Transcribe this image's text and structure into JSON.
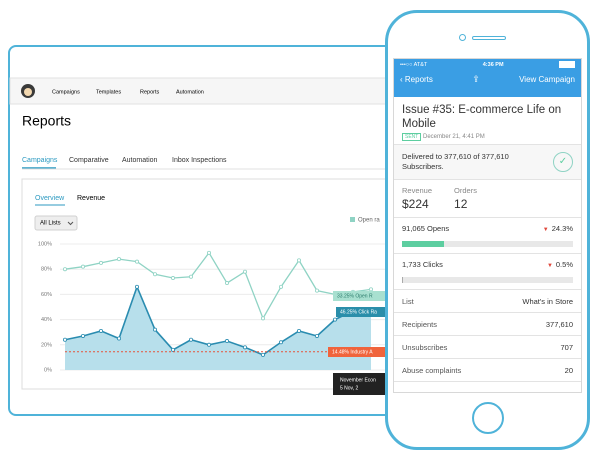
{
  "app_nav": {
    "items": [
      "Campaigns",
      "Templates",
      "Reports",
      "Automation"
    ]
  },
  "page_title": "Reports",
  "tabs": [
    "Campaigns",
    "Comparative",
    "Automation",
    "Inbox Inspections"
  ],
  "chart": {
    "type": "line",
    "tabs": [
      "Overview",
      "Revenue"
    ],
    "list_filter": "All Lists",
    "ylim": [
      0,
      100
    ],
    "yticks": [
      {
        "value": 0,
        "label": "0%"
      },
      {
        "value": 20,
        "label": "20%"
      },
      {
        "value": 40,
        "label": "40%"
      },
      {
        "value": 60,
        "label": "60%"
      },
      {
        "value": 80,
        "label": "80%"
      },
      {
        "value": 100,
        "label": "100%"
      }
    ],
    "grid": true,
    "series": [
      {
        "name": "Open ra",
        "color": "#8fd3c4",
        "values": [
          80,
          82,
          85,
          88,
          86,
          76,
          73,
          74,
          93,
          69,
          78,
          41,
          66,
          87,
          63,
          60,
          62,
          64
        ]
      },
      {
        "color": "#2a8cb0",
        "values": [
          24,
          27,
          31,
          25,
          66,
          32,
          16,
          24,
          20,
          23,
          18,
          12,
          22,
          31,
          27,
          40,
          47,
          45
        ]
      }
    ],
    "industry_average": 14.48,
    "tooltips": [
      {
        "text": "33.25% Open R",
        "color": "#a8e0d0"
      },
      {
        "text": "46.25% Click Ra",
        "color": "#2a8eaa"
      },
      {
        "text": "14.48% Industry A",
        "color": "#f0643c"
      }
    ],
    "event_label": [
      "November Econ",
      "5 Nov, 2"
    ]
  },
  "phone": {
    "status": {
      "carrier": "•••○○ AT&T",
      "time": "4:36 PM"
    },
    "nav": {
      "back": "Reports",
      "action": "View Campaign"
    },
    "title": "Issue #35: E-commerce Life on Mobile",
    "badge": "SENT",
    "date": "December 21, 4:41 PM",
    "delivered": "Delivered to 377,610 of 377,610 Subscribers.",
    "stats": [
      {
        "label": "Revenue",
        "value": "$224"
      },
      {
        "label": "Orders",
        "value": "12"
      }
    ],
    "metrics": [
      {
        "label": "91,065 Opens",
        "rate": 24.3,
        "rate_label": "24.3%"
      },
      {
        "label": "1,733 Clicks",
        "rate": 0.5,
        "rate_label": "0.5%"
      }
    ],
    "rows": [
      [
        "List",
        "What's in Store"
      ],
      [
        "Recipients",
        "377,610"
      ],
      [
        "Unsubscribes",
        "707"
      ],
      [
        "Abuse complaints",
        "20"
      ]
    ]
  }
}
